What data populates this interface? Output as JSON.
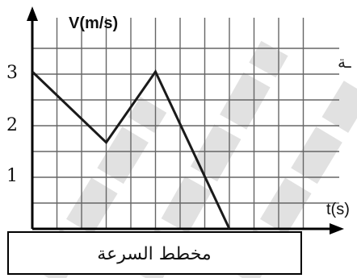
{
  "chart_data": {
    "type": "line",
    "ylabel": "V(m/s)",
    "xlabel": "t(s)",
    "y_ticks": [
      "1",
      "2",
      "3"
    ],
    "x": [
      0,
      3,
      5,
      8
    ],
    "values": [
      3,
      1.65,
      3,
      0
    ],
    "ylim": [
      0,
      4
    ],
    "grid": true,
    "caption": "مخطط السرعة",
    "edge_fragment": "ـة"
  },
  "colors": {
    "line": "#1a1a1a",
    "grid": "#666666",
    "axis": "#000000",
    "watermark": "#c9c9c9"
  }
}
